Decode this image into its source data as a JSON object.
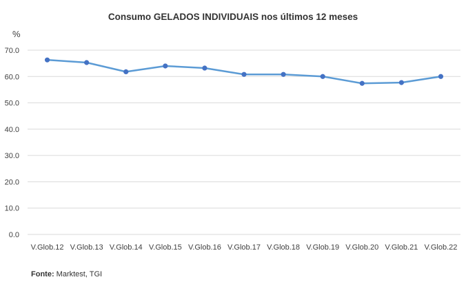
{
  "chart_data": {
    "type": "line",
    "title": "Consumo GELADOS INDIVIDUAIS nos últimos 12 meses",
    "ylabel": "%",
    "xlabel": "",
    "categories": [
      "V.Glob.12",
      "V.Glob.13",
      "V.Glob.14",
      "V.Glob.15",
      "V.Glob.16",
      "V.Glob.17",
      "V.Glob.18",
      "V.Glob.19",
      "V.Glob.20",
      "V.Glob.21",
      "V.Glob.22"
    ],
    "series": [
      {
        "values": [
          66.3,
          65.3,
          61.8,
          64.0,
          63.2,
          60.8,
          60.8,
          60.0,
          57.4,
          57.7,
          60.0
        ]
      }
    ],
    "ylim": [
      0,
      70
    ],
    "yticks": [
      "0.0",
      "10.0",
      "20.0",
      "30.0",
      "40.0",
      "50.0",
      "60.0",
      "70.0"
    ],
    "grid": true,
    "legend": "none",
    "line_color": "#5B9BD5",
    "grid_color": "#D9D9D9"
  },
  "source": {
    "label": "Fonte:",
    "text": " Marktest, TGI"
  }
}
